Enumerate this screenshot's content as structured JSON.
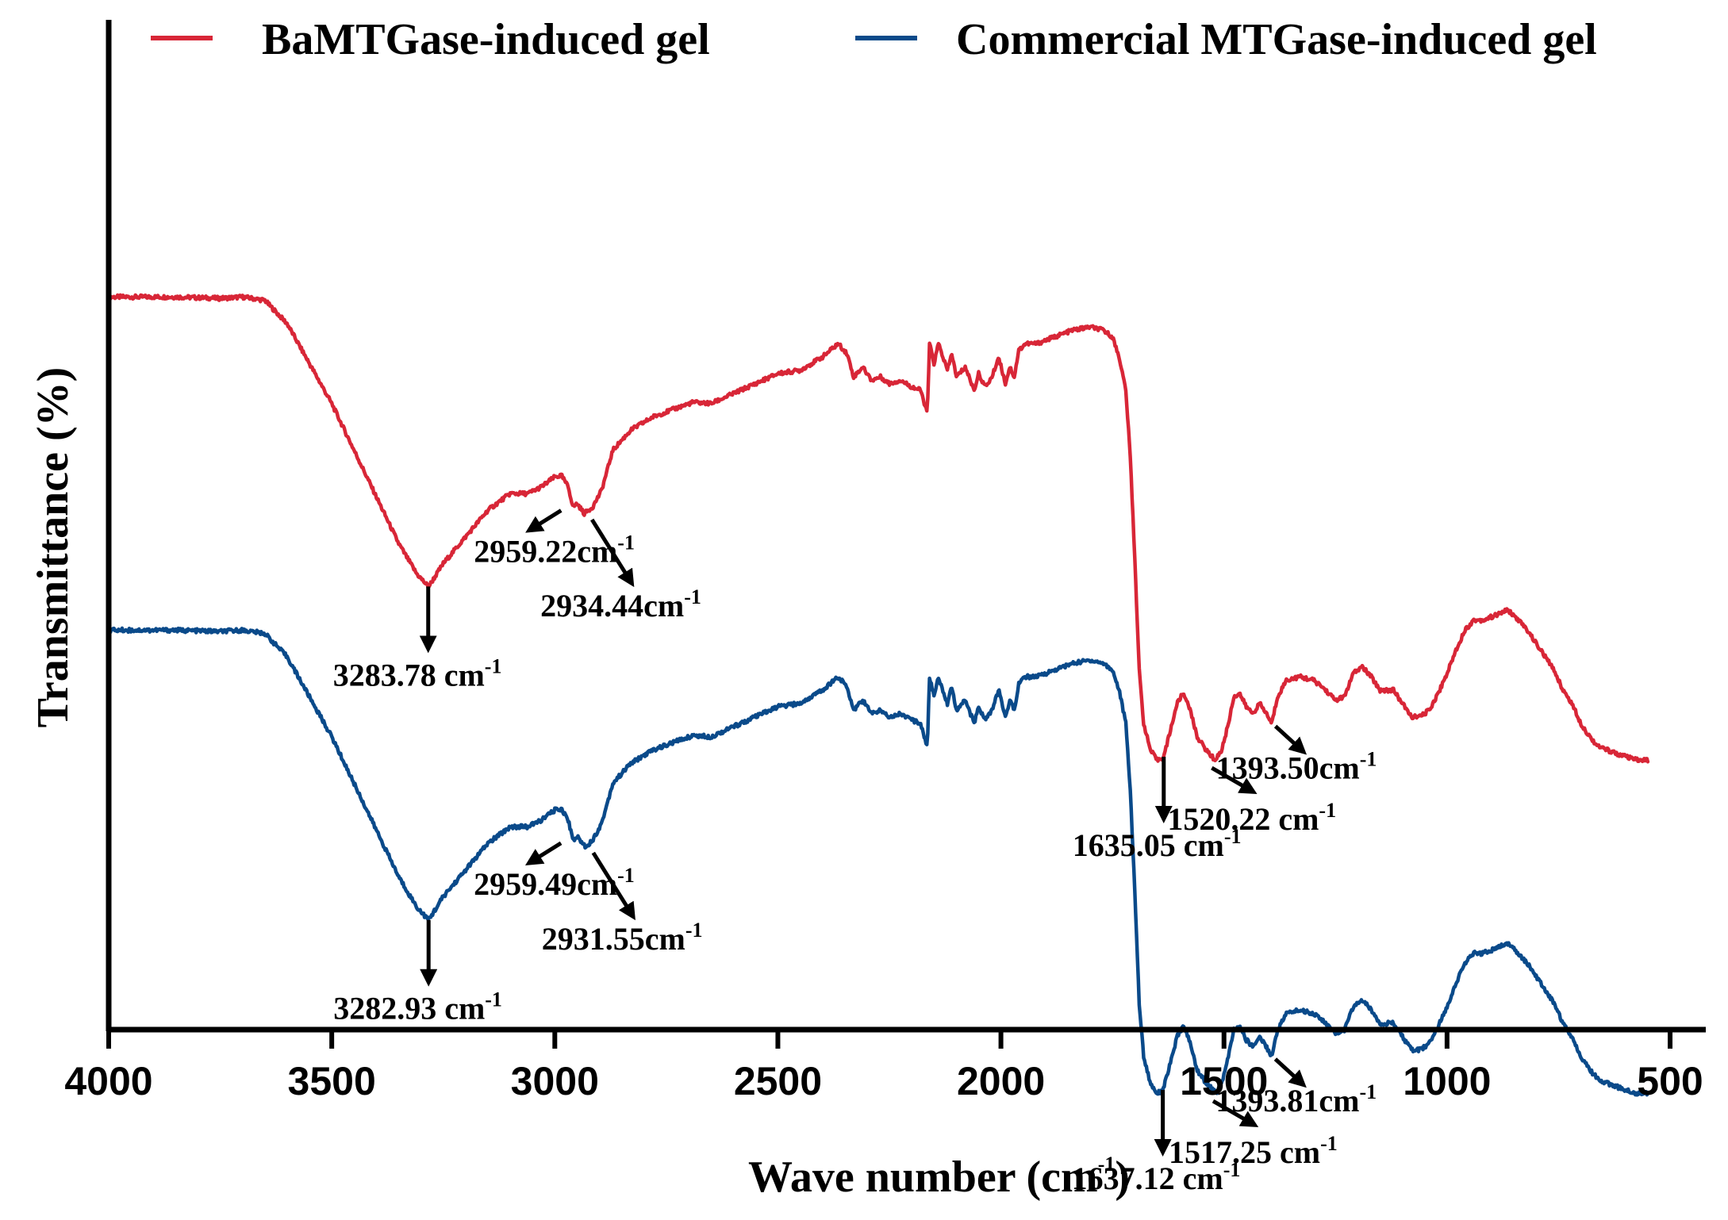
{
  "chart_data": {
    "type": "line",
    "title": "",
    "xlabel": "Wave number (cm",
    "xlabel_sup": "-1",
    "xlabel_close": ")",
    "ylabel": "Transmittance (%)",
    "xlim": [
      4000,
      420
    ],
    "x_reversed": true,
    "y_ticks_shown": false,
    "xticks": [
      4000,
      3500,
      3000,
      2500,
      2000,
      1500,
      1000,
      500
    ],
    "xtick_labels": [
      "4000",
      "3500",
      "3000",
      "2500",
      "2000",
      "1500",
      "1000",
      "500"
    ],
    "legend_position": "top",
    "colors": {
      "red": "#d82637",
      "blue": "#0a4a8a"
    },
    "series": [
      {
        "name": "BaMTGase-induced gel",
        "color": "#d82637",
        "offset": 0,
        "points": [
          [
            4000,
            0.84
          ],
          [
            3850,
            0.84
          ],
          [
            3750,
            0.838
          ],
          [
            3700,
            0.84
          ],
          [
            3650,
            0.835
          ],
          [
            3600,
            0.8
          ],
          [
            3550,
            0.74
          ],
          [
            3500,
            0.68
          ],
          [
            3450,
            0.61
          ],
          [
            3400,
            0.54
          ],
          [
            3350,
            0.47
          ],
          [
            3310,
            0.425
          ],
          [
            3283,
            0.405
          ],
          [
            3250,
            0.44
          ],
          [
            3200,
            0.48
          ],
          [
            3150,
            0.52
          ],
          [
            3100,
            0.545
          ],
          [
            3060,
            0.545
          ],
          [
            3030,
            0.555
          ],
          [
            3000,
            0.57
          ],
          [
            2985,
            0.572
          ],
          [
            2970,
            0.555
          ],
          [
            2959,
            0.525
          ],
          [
            2950,
            0.53
          ],
          [
            2934,
            0.515
          ],
          [
            2915,
            0.525
          ],
          [
            2895,
            0.55
          ],
          [
            2870,
            0.61
          ],
          [
            2830,
            0.64
          ],
          [
            2780,
            0.66
          ],
          [
            2720,
            0.675
          ],
          [
            2690,
            0.682
          ],
          [
            2650,
            0.68
          ],
          [
            2600,
            0.695
          ],
          [
            2550,
            0.71
          ],
          [
            2500,
            0.725
          ],
          [
            2450,
            0.73
          ],
          [
            2400,
            0.75
          ],
          [
            2365,
            0.77
          ],
          [
            2345,
            0.755
          ],
          [
            2330,
            0.72
          ],
          [
            2310,
            0.735
          ],
          [
            2290,
            0.715
          ],
          [
            2270,
            0.72
          ],
          [
            2250,
            0.71
          ],
          [
            2225,
            0.715
          ],
          [
            2200,
            0.705
          ],
          [
            2180,
            0.7
          ],
          [
            2165,
            0.665
          ],
          [
            2160,
            0.77
          ],
          [
            2150,
            0.74
          ],
          [
            2140,
            0.77
          ],
          [
            2120,
            0.73
          ],
          [
            2110,
            0.755
          ],
          [
            2100,
            0.72
          ],
          [
            2080,
            0.735
          ],
          [
            2060,
            0.7
          ],
          [
            2050,
            0.725
          ],
          [
            2035,
            0.705
          ],
          [
            2020,
            0.72
          ],
          [
            2005,
            0.75
          ],
          [
            1990,
            0.71
          ],
          [
            1980,
            0.735
          ],
          [
            1970,
            0.72
          ],
          [
            1960,
            0.76
          ],
          [
            1945,
            0.77
          ],
          [
            1920,
            0.77
          ],
          [
            1880,
            0.78
          ],
          [
            1840,
            0.79
          ],
          [
            1800,
            0.795
          ],
          [
            1770,
            0.79
          ],
          [
            1750,
            0.78
          ],
          [
            1735,
            0.75
          ],
          [
            1720,
            0.7
          ],
          [
            1710,
            0.6
          ],
          [
            1700,
            0.45
          ],
          [
            1690,
            0.28
          ],
          [
            1680,
            0.2
          ],
          [
            1665,
            0.16
          ],
          [
            1650,
            0.145
          ],
          [
            1635,
            0.15
          ],
          [
            1620,
            0.19
          ],
          [
            1605,
            0.23
          ],
          [
            1592,
            0.245
          ],
          [
            1580,
            0.23
          ],
          [
            1560,
            0.18
          ],
          [
            1540,
            0.16
          ],
          [
            1520,
            0.145
          ],
          [
            1505,
            0.16
          ],
          [
            1490,
            0.2
          ],
          [
            1478,
            0.24
          ],
          [
            1465,
            0.245
          ],
          [
            1450,
            0.225
          ],
          [
            1435,
            0.215
          ],
          [
            1420,
            0.23
          ],
          [
            1405,
            0.215
          ],
          [
            1393,
            0.2
          ],
          [
            1380,
            0.24
          ],
          [
            1360,
            0.265
          ],
          [
            1330,
            0.27
          ],
          [
            1300,
            0.265
          ],
          [
            1280,
            0.255
          ],
          [
            1250,
            0.235
          ],
          [
            1230,
            0.24
          ],
          [
            1210,
            0.275
          ],
          [
            1190,
            0.285
          ],
          [
            1170,
            0.27
          ],
          [
            1150,
            0.25
          ],
          [
            1120,
            0.25
          ],
          [
            1100,
            0.23
          ],
          [
            1080,
            0.21
          ],
          [
            1060,
            0.21
          ],
          [
            1040,
            0.22
          ],
          [
            1020,
            0.245
          ],
          [
            1000,
            0.275
          ],
          [
            980,
            0.31
          ],
          [
            960,
            0.34
          ],
          [
            940,
            0.355
          ],
          [
            920,
            0.355
          ],
          [
            900,
            0.36
          ],
          [
            880,
            0.365
          ],
          [
            870,
            0.37
          ],
          [
            860,
            0.368
          ],
          [
            840,
            0.355
          ],
          [
            820,
            0.34
          ],
          [
            800,
            0.32
          ],
          [
            780,
            0.3
          ],
          [
            760,
            0.28
          ],
          [
            740,
            0.25
          ],
          [
            720,
            0.23
          ],
          [
            700,
            0.2
          ],
          [
            680,
            0.18
          ],
          [
            660,
            0.165
          ],
          [
            640,
            0.16
          ],
          [
            620,
            0.155
          ],
          [
            600,
            0.15
          ],
          [
            575,
            0.145
          ],
          [
            550,
            0.145
          ]
        ]
      },
      {
        "name": "Commercial MTGase-induced gel",
        "color": "#0a4a8a",
        "offset": -0.5,
        "points": [
          [
            4000,
            0.84
          ],
          [
            3850,
            0.84
          ],
          [
            3750,
            0.838
          ],
          [
            3700,
            0.84
          ],
          [
            3650,
            0.835
          ],
          [
            3600,
            0.8
          ],
          [
            3550,
            0.74
          ],
          [
            3500,
            0.68
          ],
          [
            3450,
            0.61
          ],
          [
            3400,
            0.54
          ],
          [
            3350,
            0.47
          ],
          [
            3310,
            0.425
          ],
          [
            3283,
            0.405
          ],
          [
            3250,
            0.44
          ],
          [
            3200,
            0.48
          ],
          [
            3150,
            0.52
          ],
          [
            3100,
            0.545
          ],
          [
            3060,
            0.545
          ],
          [
            3030,
            0.555
          ],
          [
            3000,
            0.57
          ],
          [
            2985,
            0.572
          ],
          [
            2970,
            0.555
          ],
          [
            2959,
            0.525
          ],
          [
            2950,
            0.53
          ],
          [
            2931,
            0.515
          ],
          [
            2915,
            0.525
          ],
          [
            2895,
            0.55
          ],
          [
            2870,
            0.61
          ],
          [
            2830,
            0.64
          ],
          [
            2780,
            0.66
          ],
          [
            2720,
            0.675
          ],
          [
            2690,
            0.682
          ],
          [
            2650,
            0.68
          ],
          [
            2600,
            0.695
          ],
          [
            2550,
            0.71
          ],
          [
            2500,
            0.725
          ],
          [
            2450,
            0.73
          ],
          [
            2400,
            0.75
          ],
          [
            2365,
            0.77
          ],
          [
            2345,
            0.755
          ],
          [
            2330,
            0.72
          ],
          [
            2310,
            0.735
          ],
          [
            2290,
            0.715
          ],
          [
            2270,
            0.72
          ],
          [
            2250,
            0.71
          ],
          [
            2225,
            0.715
          ],
          [
            2200,
            0.705
          ],
          [
            2180,
            0.7
          ],
          [
            2165,
            0.665
          ],
          [
            2160,
            0.77
          ],
          [
            2150,
            0.74
          ],
          [
            2140,
            0.77
          ],
          [
            2120,
            0.73
          ],
          [
            2110,
            0.755
          ],
          [
            2100,
            0.72
          ],
          [
            2080,
            0.735
          ],
          [
            2060,
            0.7
          ],
          [
            2050,
            0.725
          ],
          [
            2035,
            0.705
          ],
          [
            2020,
            0.72
          ],
          [
            2005,
            0.75
          ],
          [
            1990,
            0.71
          ],
          [
            1980,
            0.735
          ],
          [
            1970,
            0.72
          ],
          [
            1960,
            0.76
          ],
          [
            1945,
            0.77
          ],
          [
            1920,
            0.77
          ],
          [
            1880,
            0.78
          ],
          [
            1840,
            0.79
          ],
          [
            1800,
            0.795
          ],
          [
            1770,
            0.79
          ],
          [
            1750,
            0.78
          ],
          [
            1735,
            0.75
          ],
          [
            1720,
            0.7
          ],
          [
            1710,
            0.6
          ],
          [
            1700,
            0.45
          ],
          [
            1690,
            0.28
          ],
          [
            1680,
            0.2
          ],
          [
            1665,
            0.16
          ],
          [
            1650,
            0.145
          ],
          [
            1637,
            0.15
          ],
          [
            1620,
            0.19
          ],
          [
            1605,
            0.23
          ],
          [
            1592,
            0.245
          ],
          [
            1580,
            0.23
          ],
          [
            1560,
            0.18
          ],
          [
            1540,
            0.16
          ],
          [
            1517,
            0.145
          ],
          [
            1505,
            0.16
          ],
          [
            1490,
            0.2
          ],
          [
            1478,
            0.24
          ],
          [
            1465,
            0.245
          ],
          [
            1450,
            0.225
          ],
          [
            1435,
            0.215
          ],
          [
            1420,
            0.23
          ],
          [
            1405,
            0.215
          ],
          [
            1393,
            0.2
          ],
          [
            1380,
            0.24
          ],
          [
            1360,
            0.265
          ],
          [
            1330,
            0.27
          ],
          [
            1300,
            0.265
          ],
          [
            1280,
            0.255
          ],
          [
            1250,
            0.235
          ],
          [
            1230,
            0.24
          ],
          [
            1210,
            0.275
          ],
          [
            1190,
            0.285
          ],
          [
            1170,
            0.27
          ],
          [
            1150,
            0.25
          ],
          [
            1120,
            0.25
          ],
          [
            1100,
            0.23
          ],
          [
            1080,
            0.21
          ],
          [
            1060,
            0.21
          ],
          [
            1040,
            0.22
          ],
          [
            1020,
            0.245
          ],
          [
            1000,
            0.275
          ],
          [
            980,
            0.31
          ],
          [
            960,
            0.34
          ],
          [
            940,
            0.355
          ],
          [
            920,
            0.355
          ],
          [
            900,
            0.36
          ],
          [
            880,
            0.365
          ],
          [
            870,
            0.37
          ],
          [
            860,
            0.368
          ],
          [
            840,
            0.355
          ],
          [
            820,
            0.34
          ],
          [
            800,
            0.32
          ],
          [
            780,
            0.3
          ],
          [
            760,
            0.28
          ],
          [
            740,
            0.25
          ],
          [
            720,
            0.23
          ],
          [
            700,
            0.2
          ],
          [
            680,
            0.18
          ],
          [
            660,
            0.165
          ],
          [
            640,
            0.16
          ],
          [
            620,
            0.155
          ],
          [
            600,
            0.15
          ],
          [
            575,
            0.145
          ],
          [
            550,
            0.145
          ]
        ]
      }
    ],
    "annotations": [
      {
        "series": 0,
        "label": "3283.78 cm",
        "x": 3283.78,
        "kind": "down"
      },
      {
        "series": 0,
        "label": "2959.22cm",
        "x": 2959.22,
        "kind": "down-left"
      },
      {
        "series": 0,
        "label": "2934.44cm",
        "x": 2934.44,
        "kind": "down-right"
      },
      {
        "series": 0,
        "label": "1635.05 cm",
        "x": 1635.05,
        "kind": "down"
      },
      {
        "series": 0,
        "label": "1520.22 cm",
        "x": 1520.22,
        "kind": "down-right"
      },
      {
        "series": 0,
        "label": "1393.50cm",
        "x": 1393.5,
        "kind": "down-right"
      },
      {
        "series": 1,
        "label": "3282.93 cm",
        "x": 3282.93,
        "kind": "down"
      },
      {
        "series": 1,
        "label": "2959.49cm",
        "x": 2959.49,
        "kind": "down-left"
      },
      {
        "series": 1,
        "label": "2931.55cm",
        "x": 2931.55,
        "kind": "down-right"
      },
      {
        "series": 1,
        "label": "1637.12 cm",
        "x": 1637.12,
        "kind": "down"
      },
      {
        "series": 1,
        "label": "1517.25 cm",
        "x": 1517.25,
        "kind": "down-right"
      },
      {
        "series": 1,
        "label": "1393.81cm",
        "x": 1393.81,
        "kind": "down-right"
      }
    ],
    "annotation_sup": "-1"
  }
}
